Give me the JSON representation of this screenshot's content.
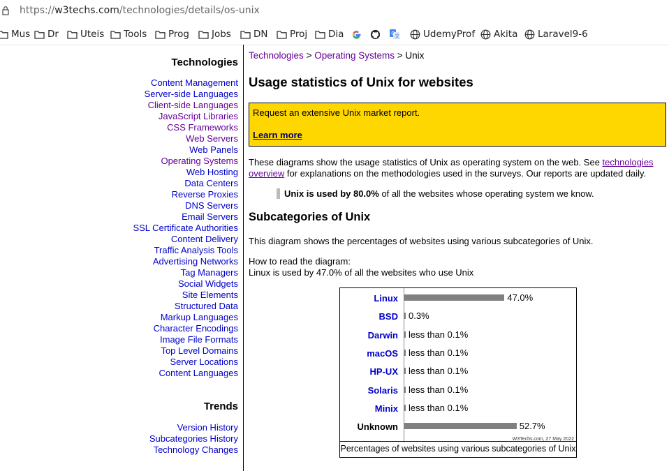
{
  "browser": {
    "url_prefix": "https://",
    "url_host": "w3techs.com",
    "url_path": "/technologies/details/os-unix",
    "bookmarks": [
      {
        "label": "Mus",
        "icon": "folder-icon"
      },
      {
        "label": "Dr",
        "icon": "folder-icon"
      },
      {
        "label": "Uteis",
        "icon": "folder-icon"
      },
      {
        "label": "Tools",
        "icon": "folder-icon"
      },
      {
        "label": "Prog",
        "icon": "folder-icon"
      },
      {
        "label": "Jobs",
        "icon": "folder-icon"
      },
      {
        "label": "DN",
        "icon": "folder-icon"
      },
      {
        "label": "Proj",
        "icon": "folder-icon"
      },
      {
        "label": "Dia",
        "icon": "folder-icon"
      },
      {
        "label": "",
        "icon": "google-icon"
      },
      {
        "label": "",
        "icon": "github-icon"
      },
      {
        "label": "",
        "icon": "translate-icon"
      },
      {
        "label": "UdemyProf",
        "icon": "globe-icon"
      },
      {
        "label": "Akita",
        "icon": "globe-icon"
      },
      {
        "label": "Laravel9-6",
        "icon": "globe-icon"
      }
    ]
  },
  "sidebar": {
    "technologies_heading": "Technologies",
    "technologies": [
      {
        "label": "Content Management",
        "visited": false
      },
      {
        "label": "Server-side Languages",
        "visited": false
      },
      {
        "label": "Client-side Languages",
        "visited": true
      },
      {
        "label": "JavaScript Libraries",
        "visited": true
      },
      {
        "label": "CSS Frameworks",
        "visited": true
      },
      {
        "label": "Web Servers",
        "visited": true
      },
      {
        "label": "Web Panels",
        "visited": false
      },
      {
        "label": "Operating Systems",
        "visited": true
      },
      {
        "label": "Web Hosting",
        "visited": false
      },
      {
        "label": "Data Centers",
        "visited": false
      },
      {
        "label": "Reverse Proxies",
        "visited": false
      },
      {
        "label": "DNS Servers",
        "visited": false
      },
      {
        "label": "Email Servers",
        "visited": false
      },
      {
        "label": "SSL Certificate Authorities",
        "visited": false
      },
      {
        "label": "Content Delivery",
        "visited": false
      },
      {
        "label": "Traffic Analysis Tools",
        "visited": false
      },
      {
        "label": "Advertising Networks",
        "visited": false
      },
      {
        "label": "Tag Managers",
        "visited": false
      },
      {
        "label": "Social Widgets",
        "visited": false
      },
      {
        "label": "Site Elements",
        "visited": false
      },
      {
        "label": "Structured Data",
        "visited": false
      },
      {
        "label": "Markup Languages",
        "visited": false
      },
      {
        "label": "Character Encodings",
        "visited": false
      },
      {
        "label": "Image File Formats",
        "visited": false
      },
      {
        "label": "Top Level Domains",
        "visited": false
      },
      {
        "label": "Server Locations",
        "visited": false
      },
      {
        "label": "Content Languages",
        "visited": false
      }
    ],
    "trends_heading": "Trends",
    "trends": [
      {
        "label": "Version History"
      },
      {
        "label": "Subcategories History"
      },
      {
        "label": "Technology Changes"
      }
    ]
  },
  "main": {
    "breadcrumb": {
      "part1": "Technologies",
      "sep1": " > ",
      "part2": "Operating Systems",
      "sep2": " > ",
      "current": "Unix"
    },
    "title": "Usage statistics of Unix for websites",
    "promo": {
      "text": "Request an extensive Unix market report.",
      "link": "Learn more"
    },
    "intro_text_1": "These diagrams show the usage statistics of Unix as operating system on the web. See ",
    "intro_link": "technologies overview",
    "intro_text_2": " for explanations on the methodologies used in the surveys. Our reports are updated daily.",
    "highlight_bold": "Unix is used by 80.0%",
    "highlight_rest": " of all the websites whose operating system we know.",
    "subcategories_heading": "Subcategories of Unix",
    "subcategories_text": "This diagram shows the percentages of websites using various subcategories of Unix.",
    "howto_line1": "How to read the diagram:",
    "howto_line2": "Linux is used by 47.0% of all the websites who use Unix"
  },
  "chart_data": {
    "type": "bar",
    "orientation": "horizontal",
    "categories": [
      "Linux",
      "BSD",
      "Darwin",
      "macOS",
      "HP-UX",
      "Solaris",
      "Minix",
      "Unknown"
    ],
    "values": [
      47.0,
      0.3,
      0.05,
      0.05,
      0.05,
      0.05,
      0.05,
      52.7
    ],
    "value_labels": [
      "47.0%",
      "0.3%",
      "less than 0.1%",
      "less than 0.1%",
      "less than 0.1%",
      "less than 0.1%",
      "less than 0.1%",
      "52.7%"
    ],
    "category_links": [
      true,
      true,
      true,
      true,
      true,
      true,
      true,
      false
    ],
    "bar_color": "#808080",
    "link_color": "#0000cc",
    "xlim": [
      0,
      100
    ],
    "source": "W3Techs.com, 27 May 2022",
    "caption": "Percentages of websites using various subcategories of Unix"
  }
}
